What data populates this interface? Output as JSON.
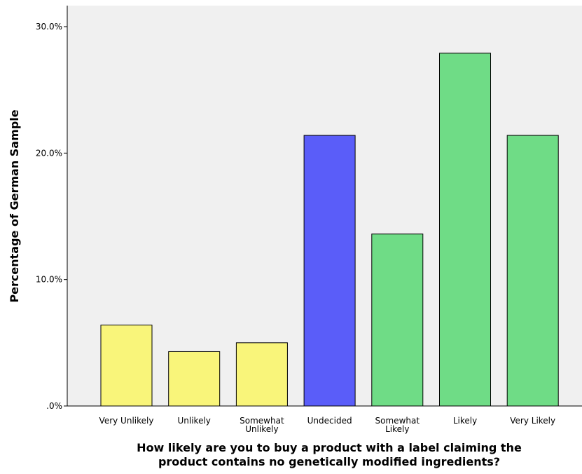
{
  "chart_data": {
    "type": "bar",
    "categories": [
      [
        "Very Unlikely"
      ],
      [
        "Unlikely"
      ],
      [
        "Somewhat",
        "Unlikely"
      ],
      [
        "Undecided"
      ],
      [
        "Somewhat",
        "Likely"
      ],
      [
        "Likely"
      ],
      [
        "Very Likely"
      ]
    ],
    "values": [
      6.4,
      4.3,
      5.0,
      21.4,
      13.6,
      27.9,
      21.4
    ],
    "bar_colors": [
      "#f9f57a",
      "#f9f57a",
      "#f9f57a",
      "#5a5df9",
      "#6fdc86",
      "#6fdc86",
      "#6fdc86"
    ],
    "ylabel": "Percentage of German Sample",
    "xlabel": [
      "How likely are you to buy a product with a label claiming the",
      "product contains no genetically modified ingredients?"
    ],
    "ylim": [
      0,
      30
    ],
    "yticks": [
      0,
      10,
      20,
      30
    ],
    "ytick_labels": [
      ".0%",
      "10.0%",
      "20.0%",
      "30.0%"
    ],
    "plot_background": "#f0f0f0",
    "grid": false,
    "legend": "none"
  }
}
